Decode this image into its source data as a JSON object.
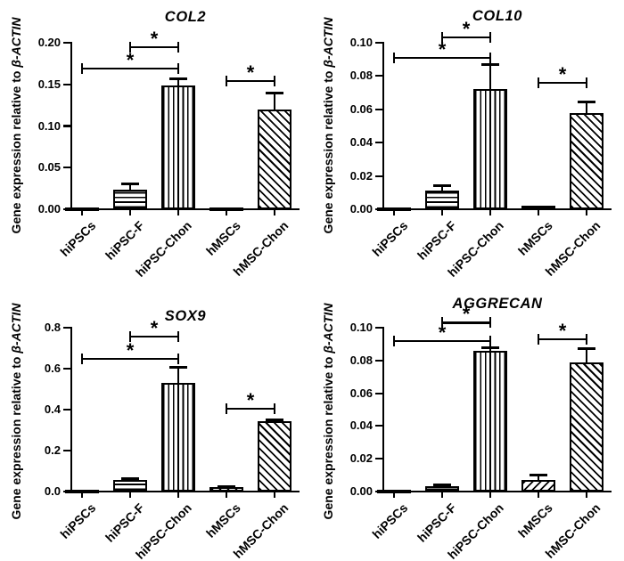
{
  "figure": {
    "ylabel_prefix": "Gene expression relative to ",
    "ylabel_italic": "β-ACTIN",
    "sig_symbol": "*",
    "categories": [
      "hiPSCs",
      "hiPSC-F",
      "hiPSC-Chon",
      "hMSCs",
      "hMSC-Chon"
    ],
    "colors": {
      "foreground": "#000000",
      "background": "#ffffff"
    }
  },
  "chart_data": [
    {
      "type": "bar",
      "title": "COL2",
      "ylabel": "Gene expression relative to β-ACTIN",
      "categories": [
        "hiPSCs",
        "hiPSC-F",
        "hiPSC-Chon",
        "hMSCs",
        "hMSC-Chon"
      ],
      "values": [
        0.001,
        0.023,
        0.149,
        0.001,
        0.12
      ],
      "errors_plus": [
        0,
        0.007,
        0.008,
        0,
        0.02
      ],
      "patterns": [
        "solid",
        "hstripe",
        "vstripe",
        "fdiag",
        "bdiag"
      ],
      "ylim": [
        0,
        0.2
      ],
      "grid": false,
      "yticks": {
        "values": [
          0,
          0.05,
          0.1,
          0.15,
          0.2
        ],
        "labels": [
          "0.00",
          "0.05",
          "0.10",
          "0.15",
          "0.20"
        ]
      },
      "significance": [
        {
          "i1": 1,
          "i2": 2,
          "y": 0.195,
          "label": "*"
        },
        {
          "i1": 0,
          "i2": 2,
          "y": 0.169,
          "label": "*"
        },
        {
          "i1": 3,
          "i2": 4,
          "y": 0.154,
          "label": "*"
        }
      ]
    },
    {
      "type": "bar",
      "title": "COL10",
      "ylabel": "Gene expression relative to β-ACTIN",
      "categories": [
        "hiPSCs",
        "hiPSC-F",
        "hiPSC-Chon",
        "hMSCs",
        "hMSC-Chon"
      ],
      "values": [
        0.001,
        0.011,
        0.072,
        0.002,
        0.058
      ],
      "errors_plus": [
        0,
        0.003,
        0.015,
        0,
        0.0065
      ],
      "patterns": [
        "solid",
        "hstripe",
        "vstripe",
        "fdiag",
        "bdiag"
      ],
      "ylim": [
        0,
        0.1
      ],
      "grid": false,
      "yticks": {
        "values": [
          0,
          0.02,
          0.04,
          0.06,
          0.08,
          0.1
        ],
        "labels": [
          "0.00",
          "0.02",
          "0.04",
          "0.06",
          "0.08",
          "0.10"
        ]
      },
      "significance": [
        {
          "i1": 1,
          "i2": 2,
          "y": 0.103,
          "label": "*"
        },
        {
          "i1": 0,
          "i2": 2,
          "y": 0.091,
          "label": "*"
        },
        {
          "i1": 3,
          "i2": 4,
          "y": 0.076,
          "label": "*"
        }
      ]
    },
    {
      "type": "bar",
      "title": "SOX9",
      "ylabel": "Gene expression relative to β-ACTIN",
      "categories": [
        "hiPSCs",
        "hiPSC-F",
        "hiPSC-Chon",
        "hMSCs",
        "hMSC-Chon"
      ],
      "values": [
        0.005,
        0.055,
        0.53,
        0.02,
        0.345
      ],
      "errors_plus": [
        0,
        0.008,
        0.075,
        0.005,
        0.005
      ],
      "patterns": [
        "solid",
        "hstripe",
        "vstripe",
        "fdiag",
        "bdiag"
      ],
      "ylim": [
        0,
        0.8
      ],
      "grid": false,
      "yticks": {
        "values": [
          0,
          0.2,
          0.4,
          0.6,
          0.8
        ],
        "labels": [
          "0.0",
          "0.2",
          "0.4",
          "0.6",
          "0.8"
        ]
      },
      "significance": [
        {
          "i1": 1,
          "i2": 2,
          "y": 0.757,
          "label": "*"
        },
        {
          "i1": 0,
          "i2": 2,
          "y": 0.648,
          "label": "*"
        },
        {
          "i1": 3,
          "i2": 4,
          "y": 0.404,
          "label": "*"
        }
      ]
    },
    {
      "type": "bar",
      "title": "AGGRECAN",
      "ylabel": "Gene expression relative to β-ACTIN",
      "categories": [
        "hiPSCs",
        "hiPSC-F",
        "hiPSC-Chon",
        "hMSCs",
        "hMSC-Chon"
      ],
      "values": [
        0.001,
        0.003,
        0.086,
        0.007,
        0.079
      ],
      "errors_plus": [
        0,
        0.001,
        0.002,
        0.003,
        0.008
      ],
      "patterns": [
        "solid",
        "hstripe",
        "vstripe",
        "fdiag",
        "bdiag"
      ],
      "ylim": [
        0,
        0.1
      ],
      "grid": false,
      "yticks": {
        "values": [
          0,
          0.02,
          0.04,
          0.06,
          0.08,
          0.1
        ],
        "labels": [
          "0.00",
          "0.02",
          "0.04",
          "0.06",
          "0.08",
          "0.10"
        ]
      },
      "significance": [
        {
          "i1": 1,
          "i2": 2,
          "y": 0.103,
          "label": "*"
        },
        {
          "i1": 0,
          "i2": 2,
          "y": 0.092,
          "label": "*"
        },
        {
          "i1": 3,
          "i2": 4,
          "y": 0.093,
          "label": "*"
        }
      ]
    }
  ]
}
